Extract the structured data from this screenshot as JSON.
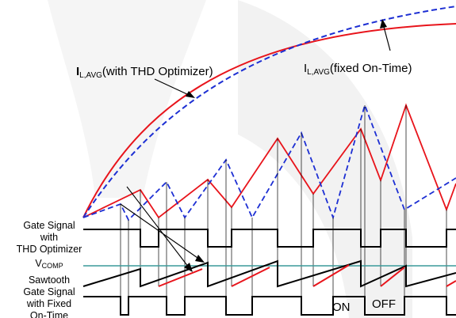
{
  "colors": {
    "thd_optimizer": "#e8141b",
    "fixed_on_time": "#1d2fd3",
    "gate_signal": "#000000",
    "vcomp_line": "#3a9a9a",
    "background_shape": "#f1f1f1"
  },
  "annotations": {
    "thd_avg": {
      "main": "I",
      "sub": "L,AVG",
      "rest": "(with THD Optimizer)"
    },
    "fixed_avg": {
      "main": "I",
      "sub": "L,AVG",
      "rest": "(fixed On-Time)"
    }
  },
  "labels": {
    "gate_thd": [
      "Gate Signal",
      "with",
      "THD Optimizer"
    ],
    "vcomp": {
      "main": "V",
      "sub": "COMP"
    },
    "sawtooth": "Sawtooth",
    "gate_fixed": [
      "Gate Signal",
      "with Fixed",
      "On-Time"
    ]
  },
  "states": {
    "on": "ON",
    "off": "OFF"
  }
}
